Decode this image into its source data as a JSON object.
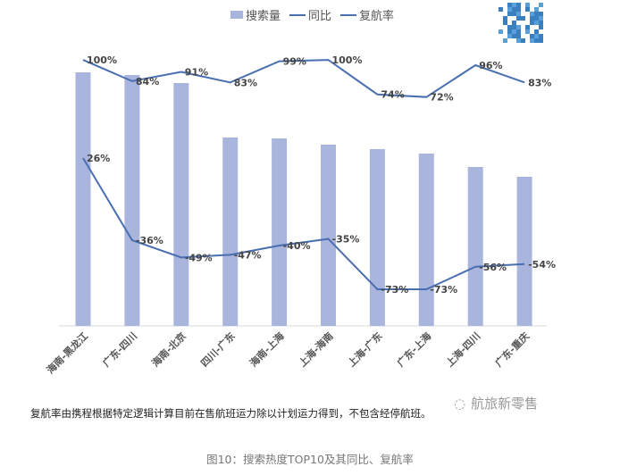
{
  "chart_data": {
    "type": "bar+line",
    "categories": [
      "海南-黑龙江",
      "广东-四川",
      "海南-北京",
      "四川-广东",
      "海南-上海",
      "上海-海南",
      "上海-广东",
      "广东-上海",
      "上海-四川",
      "广东-重庆"
    ],
    "series": [
      {
        "name": "搜索量",
        "kind": "bar",
        "color": "#a9b5dd",
        "values": [
          284,
          281,
          272,
          211,
          210,
          203,
          198,
          193,
          178,
          167
        ]
      },
      {
        "name": "同比",
        "kind": "line",
        "color": "#4a6fb0",
        "values": [
          26,
          -36,
          -49,
          -47,
          -40,
          -35,
          -73,
          -73,
          -56,
          -54
        ],
        "labels": [
          "26%",
          "-36%",
          "-49%",
          "-47%",
          "-40%",
          "-35%",
          "-73%",
          "-73%",
          "-56%",
          "-54%"
        ]
      },
      {
        "name": "复航率",
        "kind": "line",
        "color": "#4a6fb0",
        "values": [
          100,
          84,
          91,
          83,
          99,
          100,
          74,
          72,
          96,
          83
        ],
        "labels": [
          "100%",
          "84%",
          "91%",
          "83%",
          "99%",
          "100%",
          "74%",
          "72%",
          "96%",
          "83%"
        ]
      }
    ],
    "legend_position": "top",
    "grid": false
  },
  "note": "复航率由携程根据特定逻辑计算目前在售航班运力除以计划运力得到，不包含经停航班。",
  "caption": "图10：搜索热度TOP10及其同比、复航率",
  "watermark": "航旅新零售"
}
